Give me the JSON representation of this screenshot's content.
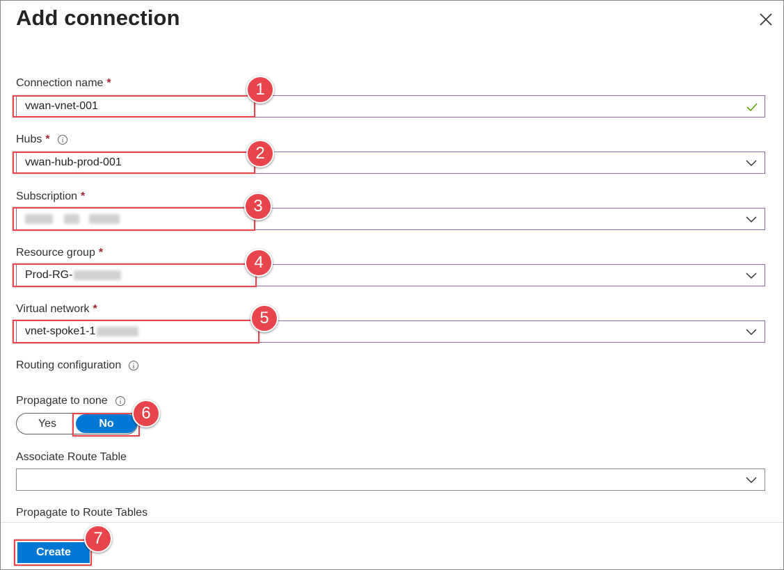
{
  "panel": {
    "title": "Add connection",
    "close_icon": "close-icon"
  },
  "fields": {
    "connection_name": {
      "label": "Connection name",
      "required": "*",
      "value": "vwan-vnet-001",
      "status_icon": "checkmark-icon"
    },
    "hubs": {
      "label": "Hubs",
      "required": "*",
      "value": "vwan-hub-prod-001",
      "info_icon": "info-icon"
    },
    "subscription": {
      "label": "Subscription",
      "required": "*",
      "value": ""
    },
    "resource_group": {
      "label": "Resource group",
      "required": "*",
      "value": "Prod-RG-"
    },
    "virtual_network": {
      "label": "Virtual network",
      "required": "*",
      "value": "vnet-spoke1-1"
    }
  },
  "routing": {
    "heading": "Routing configuration",
    "propagate_to_none": {
      "label": "Propagate to none",
      "options": [
        "Yes",
        "No"
      ],
      "selected": "No"
    },
    "associate_route_table": {
      "label": "Associate Route Table",
      "value": ""
    },
    "propagate_to_route_tables": {
      "label": "Propagate to Route Tables"
    }
  },
  "footer": {
    "create_label": "Create"
  },
  "callouts": [
    "1",
    "2",
    "3",
    "4",
    "5",
    "6",
    "7"
  ],
  "colors": {
    "accent": "#0078d4",
    "callout": "#e8444c",
    "required": "#a4262c",
    "valid": "#57a300",
    "focus_border": "#8a6d9c"
  }
}
